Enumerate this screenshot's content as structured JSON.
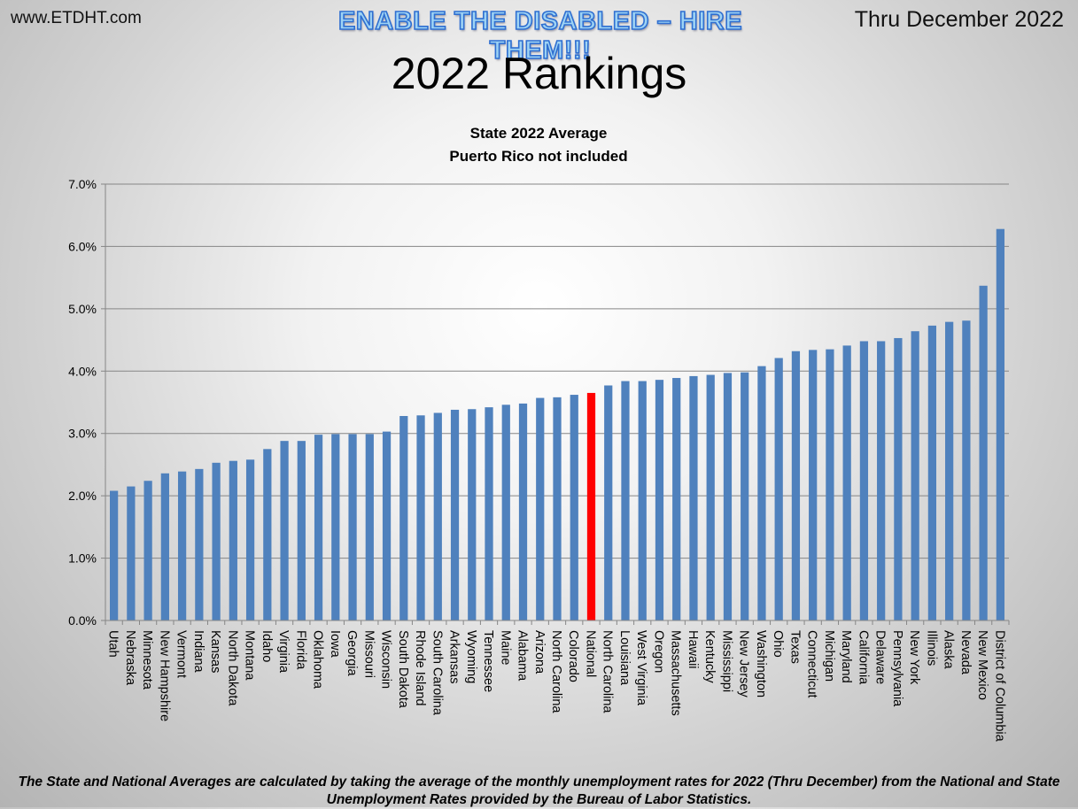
{
  "header": {
    "site": "www.ETDHT.com",
    "banner": "ENABLE THE DISABLED – HIRE THEM!!!",
    "period": "Thru December 2022",
    "main_title": "2022 Rankings"
  },
  "footnote": "The State and National Averages are calculated by taking the average of the monthly unemployment rates for 2022 (Thru December) from the National and State Unemployment Rates provided by the Bureau of Labor Statistics.",
  "colors": {
    "bar": "#4f81bd",
    "highlight": "#ff0000",
    "grid": "#868686"
  },
  "chart_data": {
    "type": "bar",
    "title": "State 2022 Average",
    "subtitle": "Puerto Rico not included",
    "xlabel": "",
    "ylabel": "",
    "ylim": [
      0,
      7.0
    ],
    "yticks": [
      "0.0%",
      "1.0%",
      "2.0%",
      "3.0%",
      "4.0%",
      "5.0%",
      "6.0%",
      "7.0%"
    ],
    "grid": true,
    "legend": "none",
    "highlight": "National",
    "categories": [
      "Utah",
      "Nebraska",
      "Minnesota",
      "New Hampshire",
      "Vermont",
      "Indiana",
      "Kansas",
      "North Dakota",
      "Montana",
      "Idaho",
      "Virginia",
      "Florida",
      "Oklahoma",
      "Iowa",
      "Georgia",
      "Missouri",
      "Wisconsin",
      "South Dakota",
      "Rhode Island",
      "South Carolina",
      "Arkansas",
      "Wyoming",
      "Tennessee",
      "Maine",
      "Alabama",
      "Arizona",
      "North Carolina",
      "Colorado",
      "National",
      "North Carolina",
      "Louisiana",
      "West Virginia",
      "Oregon",
      "Massachusetts",
      "Hawaii",
      "Kentucky",
      "Mississippi",
      "New Jersey",
      "Washington",
      "Ohio",
      "Texas",
      "Connecticut",
      "Michigan",
      "Maryland",
      "California",
      "Delaware",
      "Pennsylvania",
      "New York",
      "Illinois",
      "Alaska",
      "Nevada",
      "New Mexico",
      "District of Columbia"
    ],
    "values": [
      2.08,
      2.15,
      2.24,
      2.36,
      2.39,
      2.43,
      2.53,
      2.56,
      2.58,
      2.75,
      2.88,
      2.88,
      2.98,
      2.99,
      2.99,
      2.99,
      3.03,
      3.28,
      3.29,
      3.33,
      3.38,
      3.39,
      3.42,
      3.46,
      3.48,
      3.57,
      3.58,
      3.62,
      3.65,
      3.77,
      3.84,
      3.84,
      3.86,
      3.89,
      3.92,
      3.94,
      3.97,
      3.98,
      4.08,
      4.21,
      4.32,
      4.34,
      4.35,
      4.41,
      4.48,
      4.48,
      4.53,
      4.64,
      4.73,
      4.79,
      4.81,
      5.37,
      6.28
    ]
  }
}
